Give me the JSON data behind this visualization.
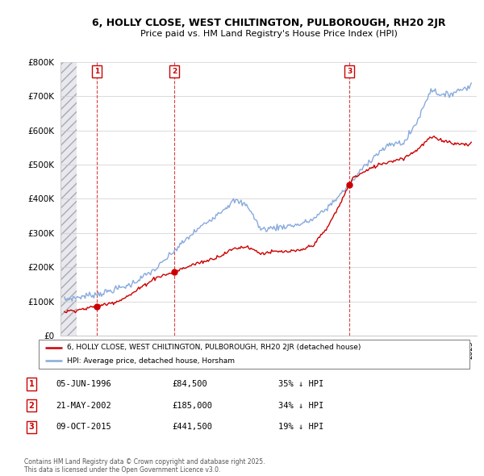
{
  "title": "6, HOLLY CLOSE, WEST CHILTINGTON, PULBOROUGH, RH20 2JR",
  "subtitle": "Price paid vs. HM Land Registry's House Price Index (HPI)",
  "sale_prices": [
    84500,
    185000,
    441500
  ],
  "sale_year_floats": [
    1996.454,
    2002.388,
    2015.772
  ],
  "sale_labels": [
    "1",
    "2",
    "3"
  ],
  "sale_info": [
    {
      "label": "1",
      "date": "05-JUN-1996",
      "price": "£84,500",
      "note": "35% ↓ HPI"
    },
    {
      "label": "2",
      "date": "21-MAY-2002",
      "price": "£185,000",
      "note": "34% ↓ HPI"
    },
    {
      "label": "3",
      "date": "09-OCT-2015",
      "price": "£441,500",
      "note": "19% ↓ HPI"
    }
  ],
  "legend_property": "6, HOLLY CLOSE, WEST CHILTINGTON, PULBOROUGH, RH20 2JR (detached house)",
  "legend_hpi": "HPI: Average price, detached house, Horsham",
  "property_color": "#cc0000",
  "hpi_color": "#88aadd",
  "footnote": "Contains HM Land Registry data © Crown copyright and database right 2025.\nThis data is licensed under the Open Government Licence v3.0.",
  "ylim_max": 800000,
  "ytick_step": 100000,
  "xmin": 1993.7,
  "xmax": 2025.5,
  "hatch_xend": 1994.95,
  "hpi_key_years": [
    1994,
    1995,
    1997,
    1999,
    2001,
    2003,
    2004,
    2007,
    2008,
    2009,
    2011,
    2012,
    2013,
    2014,
    2015,
    2016,
    2017,
    2018,
    2019,
    2020,
    2021,
    2022,
    2023,
    2024,
    2025
  ],
  "hpi_key_values": [
    105000,
    112000,
    125000,
    148000,
    195000,
    270000,
    305000,
    395000,
    380000,
    310000,
    320000,
    325000,
    340000,
    370000,
    410000,
    450000,
    500000,
    535000,
    560000,
    565000,
    630000,
    720000,
    700000,
    715000,
    730000
  ],
  "prop_key_years": [
    1994,
    1995.5,
    1996.0,
    1996.45,
    1997,
    1998,
    1999,
    2000,
    2001,
    2002.38,
    2003,
    2004,
    2005,
    2006,
    2007,
    2008,
    2009,
    2010,
    2011,
    2012,
    2013,
    2014,
    2015.0,
    2015.77,
    2016,
    2017,
    2018,
    2019,
    2020,
    2021,
    2022,
    2023,
    2024,
    2025
  ],
  "prop_key_values": [
    70000,
    78000,
    82000,
    84500,
    90000,
    100000,
    118000,
    145000,
    170000,
    185000,
    195000,
    210000,
    220000,
    235000,
    255000,
    260000,
    240000,
    245000,
    245000,
    248000,
    265000,
    310000,
    380000,
    441500,
    460000,
    480000,
    500000,
    510000,
    520000,
    545000,
    580000,
    570000,
    560000,
    560000
  ]
}
